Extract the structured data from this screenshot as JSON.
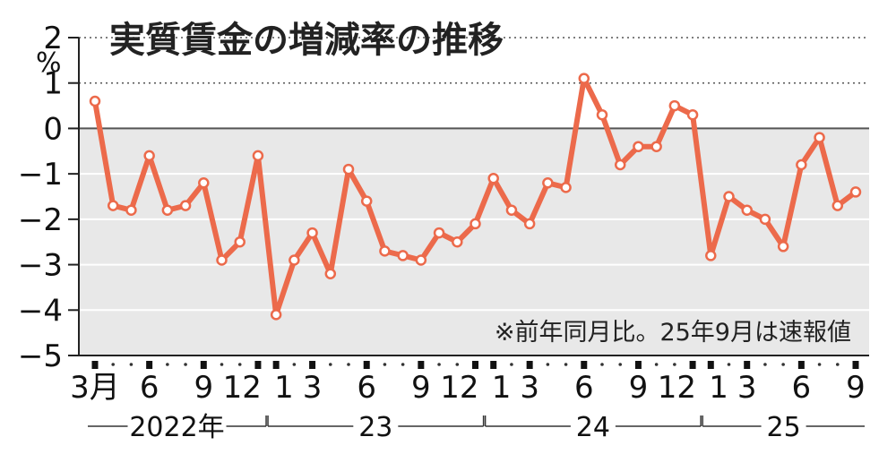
{
  "chart_data": {
    "type": "line",
    "title": "実質賃金の増減率の推移",
    "unit": "%",
    "note": "※前年同月比。25年9月は速報値",
    "ylim": [
      -5,
      2
    ],
    "yticks": [
      "2",
      "1",
      "0",
      "−1",
      "−2",
      "−3",
      "−4",
      "−5"
    ],
    "grid": "dotted horizontal lines above 0",
    "x_tick_labels": [
      {
        "index": 0,
        "label": "3月"
      },
      {
        "index": 3,
        "label": "6"
      },
      {
        "index": 6,
        "label": "9"
      },
      {
        "index": 9,
        "label": "12"
      },
      {
        "index": 10,
        "label": "1"
      },
      {
        "index": 12,
        "label": "3"
      },
      {
        "index": 15,
        "label": "6"
      },
      {
        "index": 18,
        "label": "9"
      },
      {
        "index": 21,
        "label": "12"
      },
      {
        "index": 22,
        "label": "1"
      },
      {
        "index": 24,
        "label": "3"
      },
      {
        "index": 27,
        "label": "6"
      },
      {
        "index": 30,
        "label": "9"
      },
      {
        "index": 33,
        "label": "12"
      },
      {
        "index": 34,
        "label": "1"
      },
      {
        "index": 36,
        "label": "3"
      },
      {
        "index": 39,
        "label": "6"
      },
      {
        "index": 42,
        "label": "9"
      }
    ],
    "year_groups": [
      {
        "label": "2022年",
        "start": 0,
        "end": 9
      },
      {
        "label": "23",
        "start": 10,
        "end": 21
      },
      {
        "label": "24",
        "start": 22,
        "end": 33
      },
      {
        "label": "25",
        "start": 34,
        "end": 42
      }
    ],
    "x": [
      "2022-03",
      "2022-04",
      "2022-05",
      "2022-06",
      "2022-07",
      "2022-08",
      "2022-09",
      "2022-10",
      "2022-11",
      "2022-12",
      "2023-01",
      "2023-02",
      "2023-03",
      "2023-04",
      "2023-05",
      "2023-06",
      "2023-07",
      "2023-08",
      "2023-09",
      "2023-10",
      "2023-11",
      "2023-12",
      "2024-01",
      "2024-02",
      "2024-03",
      "2024-04",
      "2024-05",
      "2024-06",
      "2024-07",
      "2024-08",
      "2024-09",
      "2024-10",
      "2024-11",
      "2024-12",
      "2025-01",
      "2025-02",
      "2025-03",
      "2025-04",
      "2025-05",
      "2025-06",
      "2025-07",
      "2025-08",
      "2025-09"
    ],
    "series": [
      {
        "color": "#ec6a4b",
        "values": [
          0.6,
          -1.7,
          -1.8,
          -0.6,
          -1.8,
          -1.7,
          -1.2,
          -2.9,
          -2.5,
          -0.6,
          -4.1,
          -2.9,
          -2.3,
          -3.2,
          -0.9,
          -1.6,
          -2.7,
          -2.8,
          -2.9,
          -2.3,
          -2.5,
          -2.1,
          -1.1,
          -1.8,
          -2.1,
          -1.2,
          -1.3,
          1.1,
          0.3,
          -0.8,
          -0.4,
          -0.4,
          0.5,
          0.3,
          -2.8,
          -1.5,
          -1.8,
          -2.0,
          -2.6,
          -0.8,
          -0.2,
          -1.7,
          -1.4
        ]
      }
    ]
  }
}
